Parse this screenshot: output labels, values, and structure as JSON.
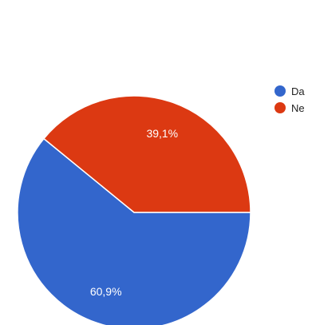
{
  "chart_data": {
    "type": "pie",
    "categories": [
      "Da",
      "Ne"
    ],
    "values": [
      60.9,
      39.1
    ],
    "value_labels": [
      "60,9%",
      "39,1%"
    ],
    "colors": [
      "#3366cc",
      "#dc3912"
    ],
    "start": "3 o'clock",
    "direction": "clockwise",
    "legend_position": "right"
  }
}
